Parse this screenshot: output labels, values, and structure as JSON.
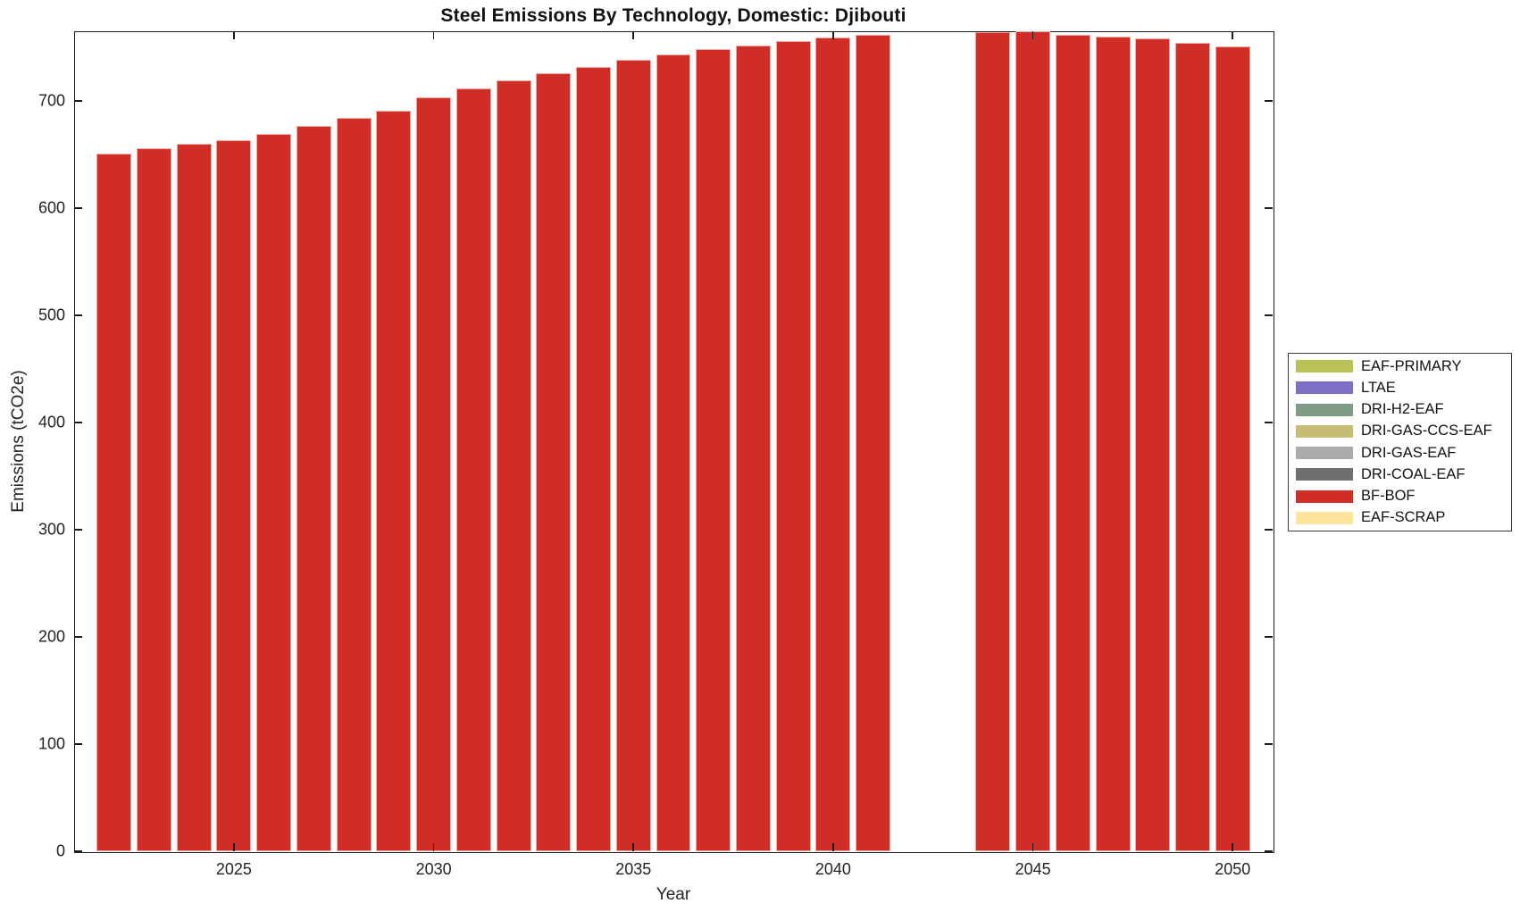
{
  "chart_data": {
    "type": "bar",
    "stacked": true,
    "title": "Steel Emissions By Technology, Domestic: Djibouti",
    "xlabel": "Year",
    "ylabel": "Emissions (tCO2e)",
    "xlim": [
      2021,
      2051
    ],
    "ylim": [
      0,
      765
    ],
    "xticks": [
      2025,
      2030,
      2035,
      2040,
      2045,
      2050
    ],
    "yticks": [
      0,
      100,
      200,
      300,
      400,
      500,
      600,
      700
    ],
    "grid": false,
    "legend_position": "right-outside",
    "x": [
      2022,
      2023,
      2024,
      2025,
      2026,
      2027,
      2028,
      2029,
      2030,
      2031,
      2032,
      2033,
      2034,
      2035,
      2036,
      2037,
      2038,
      2039,
      2040,
      2041,
      2042,
      2043,
      2044,
      2045,
      2046,
      2047,
      2048,
      2049,
      2050
    ],
    "series": [
      {
        "name": "BF-BOF",
        "color": "#d02d26",
        "values": [
          651,
          656,
          660,
          663,
          669,
          677,
          684,
          691,
          703,
          712,
          719,
          726,
          732,
          738,
          743,
          748,
          752,
          756,
          759,
          762,
          0,
          0,
          764,
          765,
          762,
          760,
          758,
          754,
          751
        ]
      }
    ],
    "legend": [
      {
        "label": "EAF-PRIMARY",
        "color": "#b9c257"
      },
      {
        "label": "LTAE",
        "color": "#7b70c4"
      },
      {
        "label": "DRI-H2-EAF",
        "color": "#7e9c83"
      },
      {
        "label": "DRI-GAS-CCS-EAF",
        "color": "#c6bc74"
      },
      {
        "label": "DRI-GAS-EAF",
        "color": "#ababab"
      },
      {
        "label": "DRI-COAL-EAF",
        "color": "#6f6f6f"
      },
      {
        "label": "BF-BOF",
        "color": "#d02d26"
      },
      {
        "label": "EAF-SCRAP",
        "color": "#fce49c"
      }
    ]
  }
}
